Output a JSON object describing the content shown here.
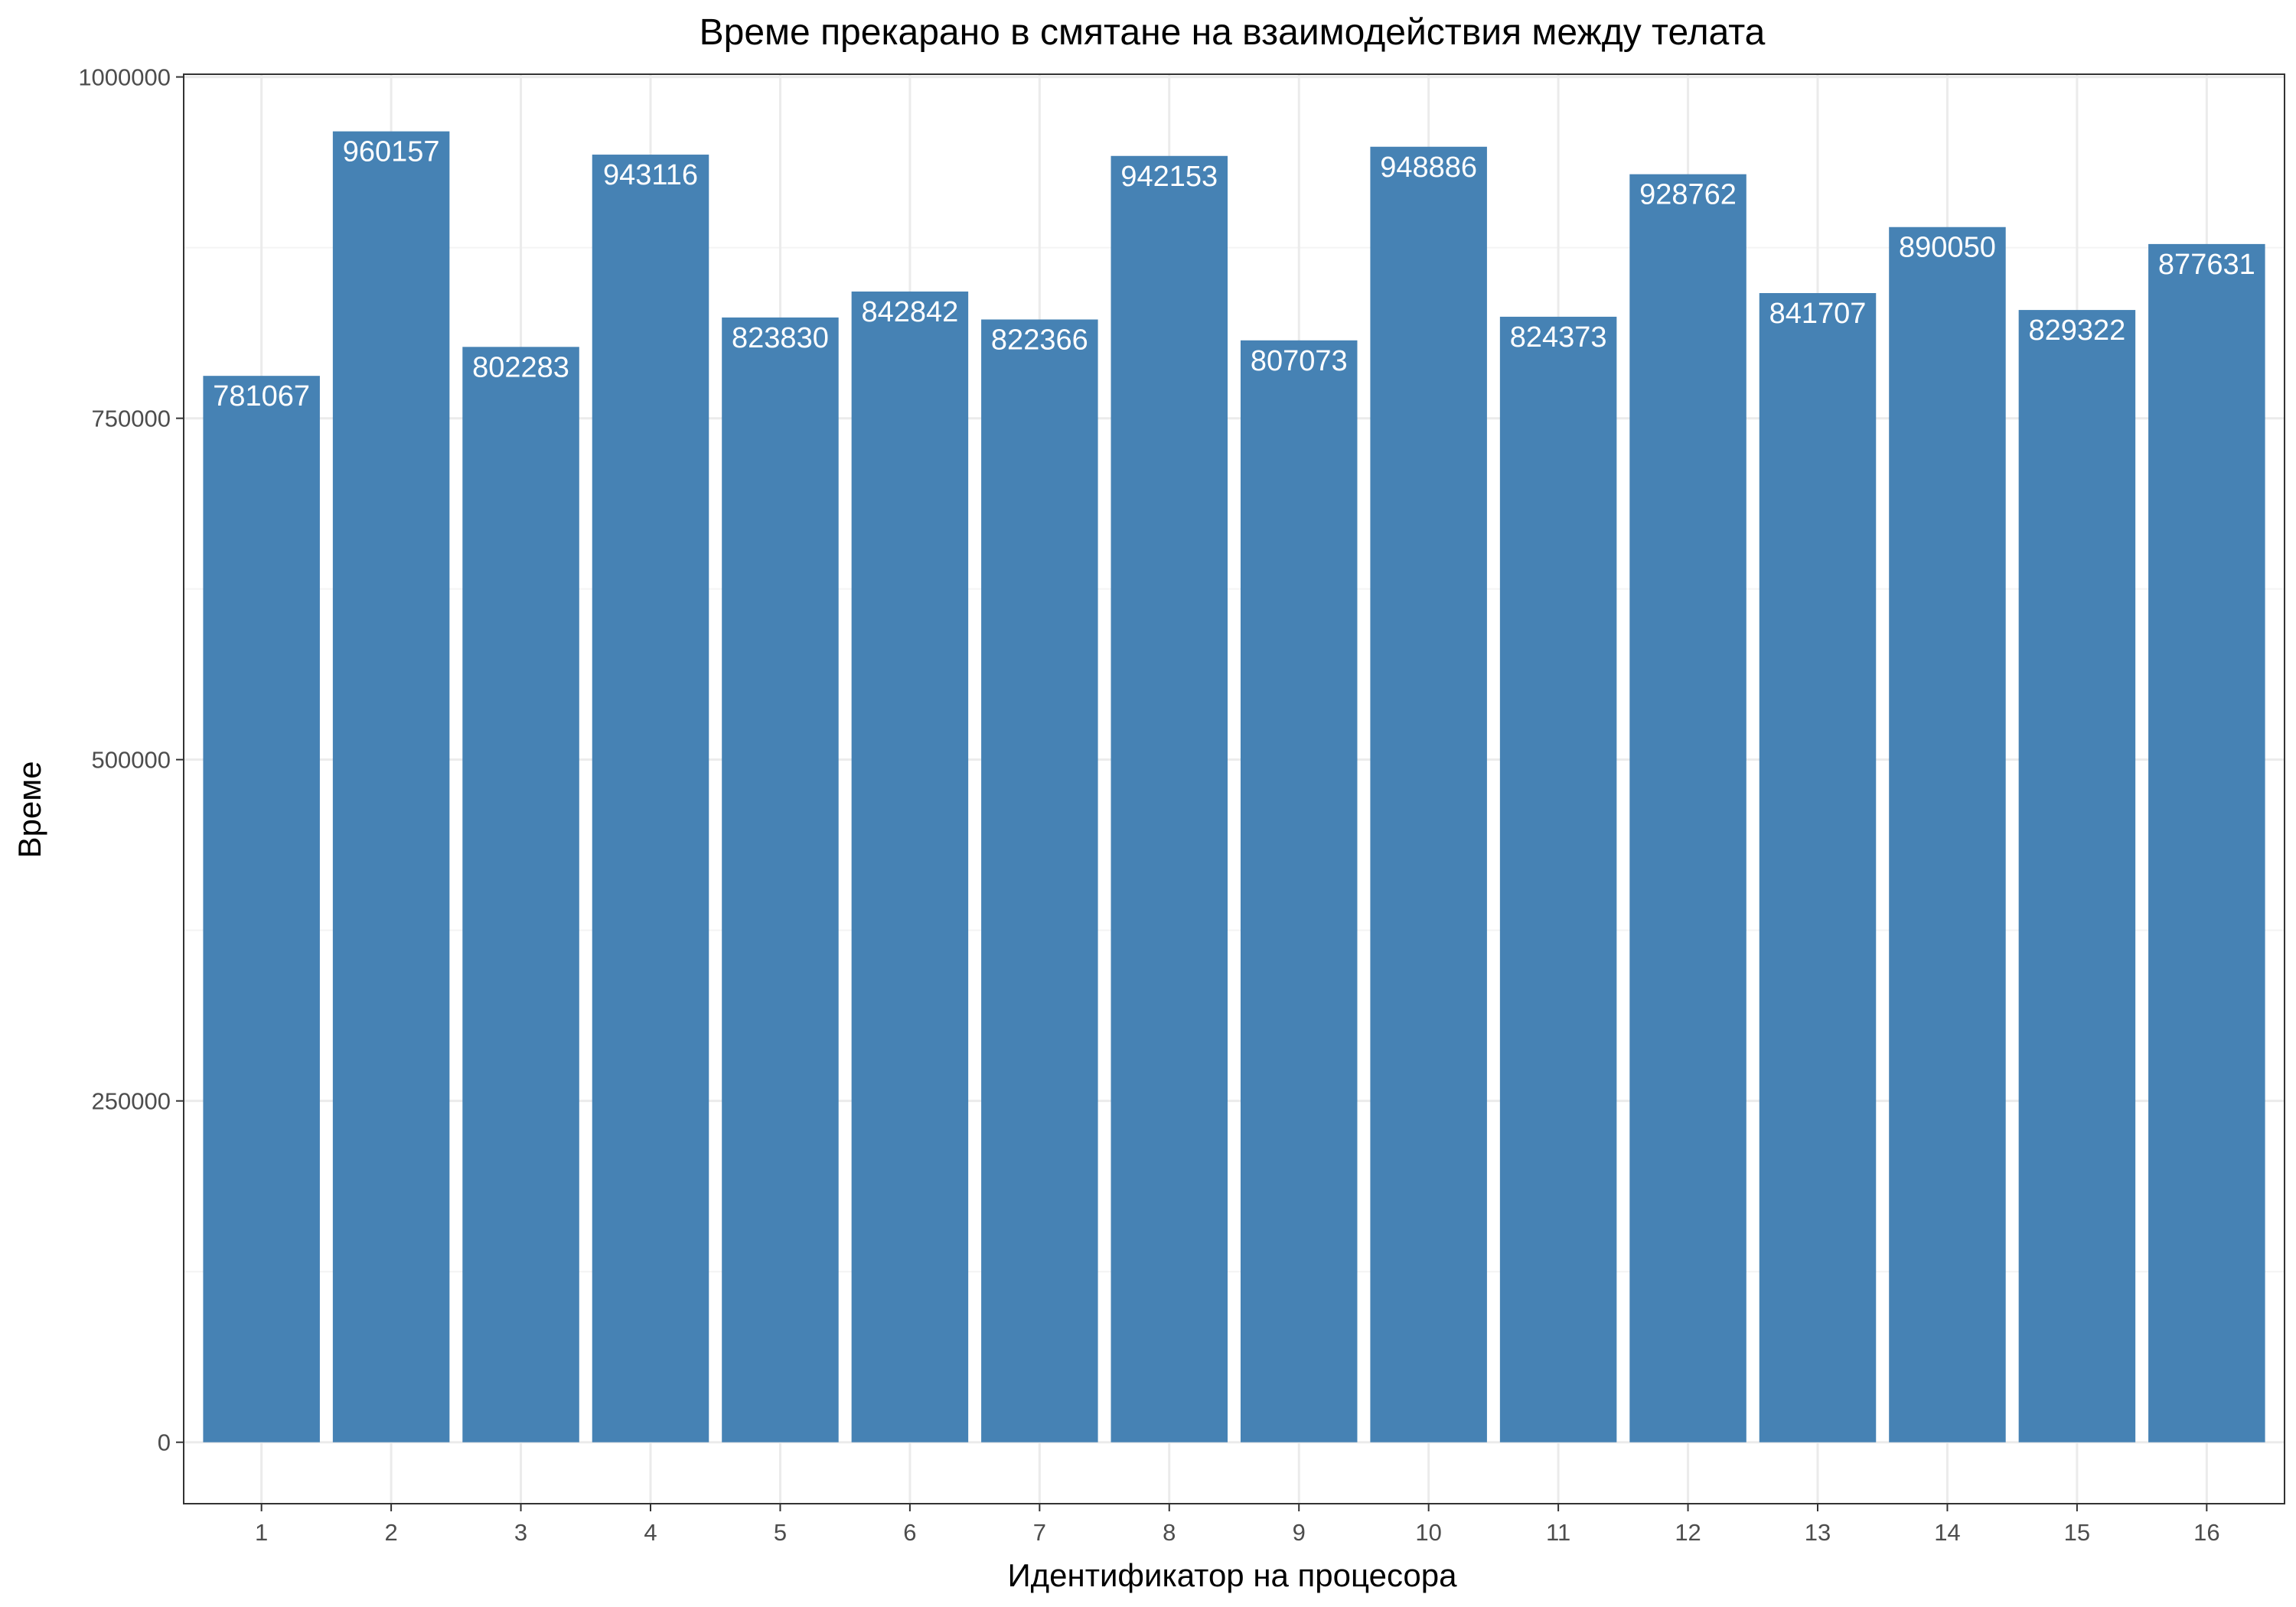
{
  "chart_data": {
    "type": "bar",
    "title": "Време прекарано в смятане на взаимодействия между телата",
    "xlabel": "Идентификатор на процесора",
    "ylabel": "Време",
    "categories": [
      "1",
      "2",
      "3",
      "4",
      "5",
      "6",
      "7",
      "8",
      "9",
      "10",
      "11",
      "12",
      "13",
      "14",
      "15",
      "16"
    ],
    "values": [
      781067,
      960157,
      802283,
      943116,
      823830,
      842842,
      822366,
      942153,
      807073,
      948886,
      824373,
      928762,
      841707,
      890050,
      829322,
      877631
    ],
    "data_labels": [
      "781067",
      "960157",
      "802283",
      "943116",
      "823830",
      "842842",
      "822366",
      "942153",
      "807073",
      "948886",
      "824373",
      "928762",
      "841707",
      "890050",
      "829322",
      "877631"
    ],
    "y_ticks": [
      0,
      250000,
      500000,
      750000,
      1000000
    ],
    "y_tick_labels": [
      "0",
      "250000",
      "500000",
      "750000",
      "1000000"
    ],
    "ylim": [
      -45000,
      1002000
    ],
    "grid": true,
    "bar_color": "#4682b4"
  }
}
